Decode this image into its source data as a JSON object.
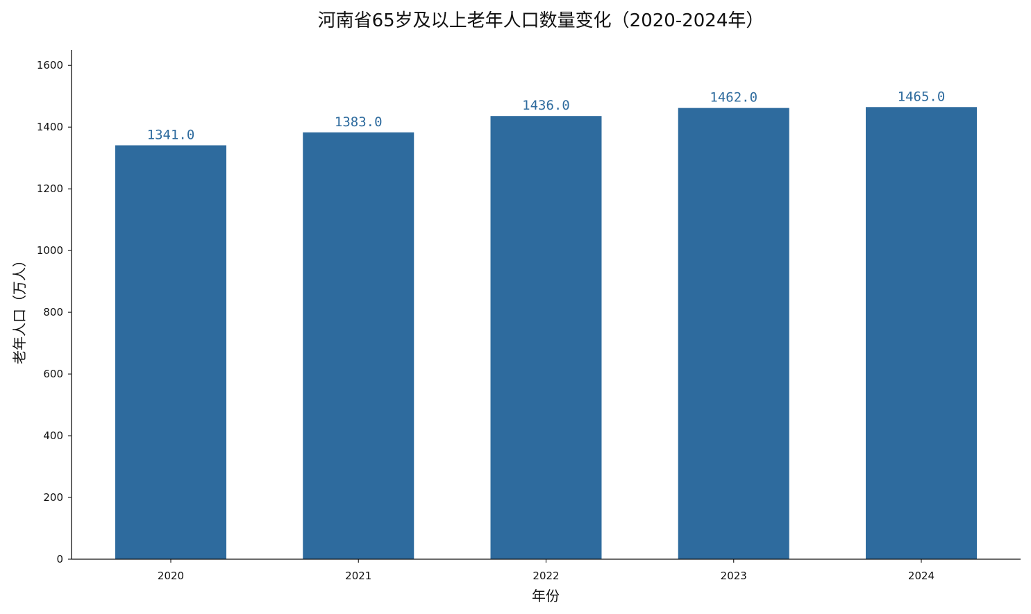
{
  "chart_data": {
    "type": "bar",
    "title": "河南省65岁及以上老年人口数量变化（2020-2024年）",
    "xlabel": "年份",
    "ylabel": "老年人口（万人）",
    "categories": [
      "2020",
      "2021",
      "2022",
      "2023",
      "2024"
    ],
    "values": [
      1341.0,
      1383.0,
      1436.0,
      1462.0,
      1465.0
    ],
    "data_labels": [
      "1341.0",
      "1383.0",
      "1436.0",
      "1462.0",
      "1465.0"
    ],
    "ylim": [
      0,
      1650
    ],
    "yticks": [
      0,
      200,
      400,
      600,
      800,
      1000,
      1200,
      1400,
      1600
    ],
    "ytick_labels": [
      "0",
      "200",
      "400",
      "600",
      "800",
      "1000",
      "1200",
      "1400",
      "1600"
    ],
    "grid": false,
    "legend": "none",
    "bar_color": "#2e6b9e",
    "label_color": "#2e6b9e"
  }
}
